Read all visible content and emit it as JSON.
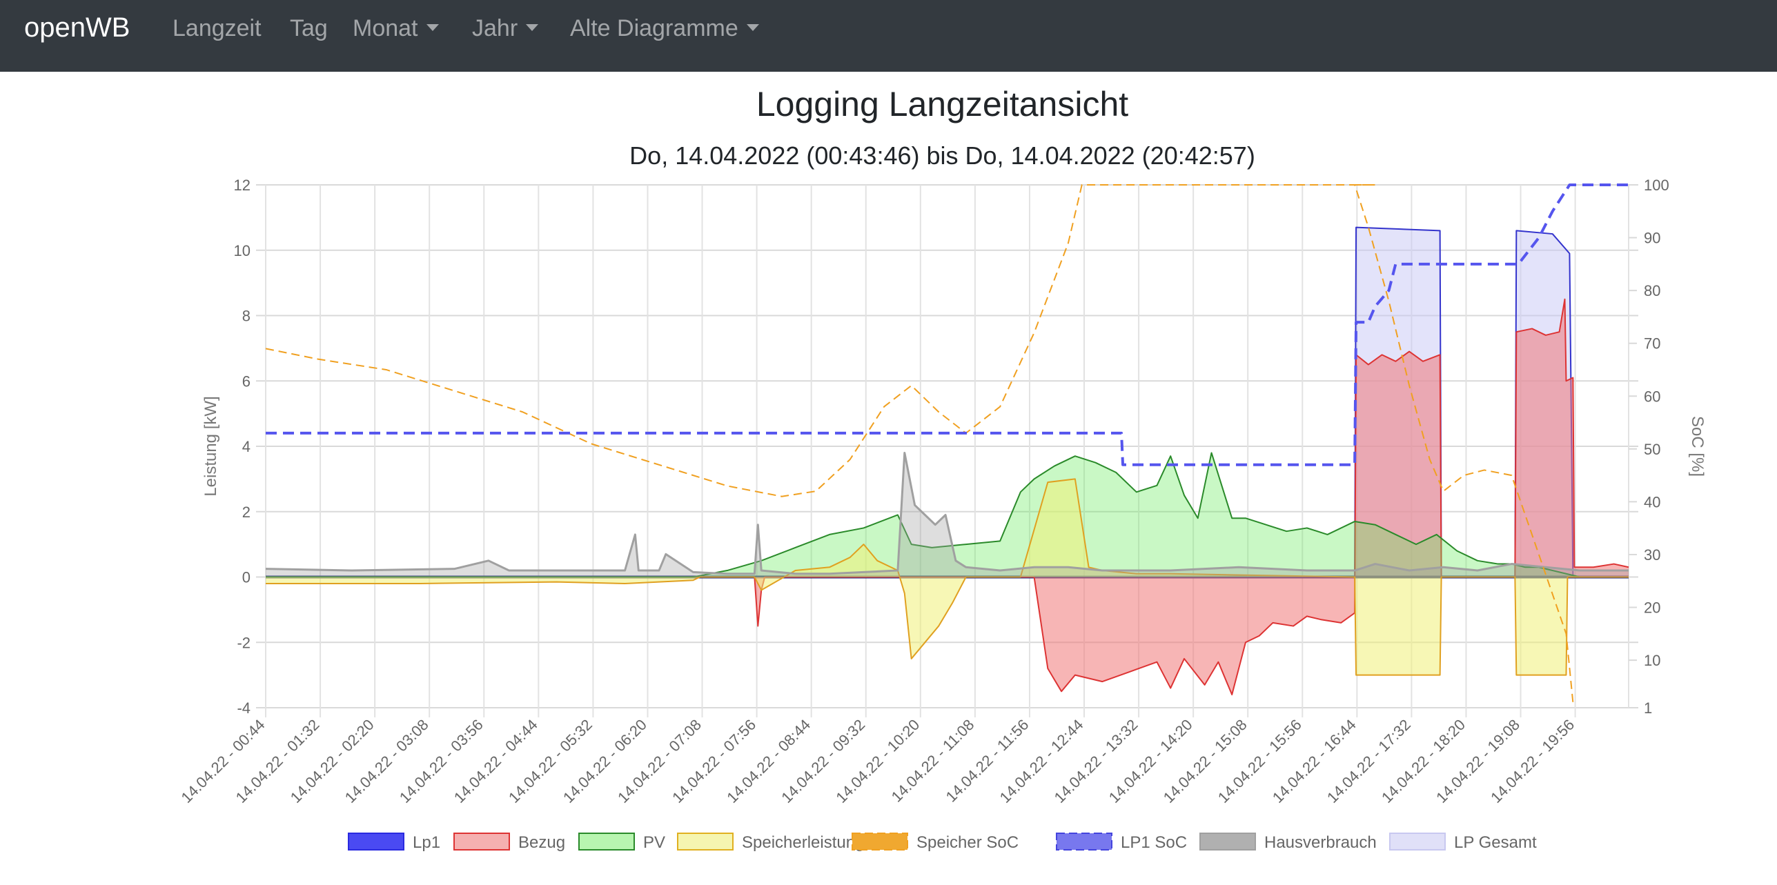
{
  "navbar": {
    "brand": "openWB",
    "items": [
      {
        "label": "Langzeit",
        "dropdown": false
      },
      {
        "label": "Tag",
        "dropdown": false
      },
      {
        "label": "Monat",
        "dropdown": true
      },
      {
        "label": "Jahr",
        "dropdown": true
      },
      {
        "label": "Alte Diagramme",
        "dropdown": true
      }
    ]
  },
  "page": {
    "title": "Logging Langzeitansicht",
    "subtitle": "Do, 14.04.2022 (00:43:46) bis Do, 14.04.2022 (20:42:57)"
  },
  "chart_data": {
    "type": "line",
    "title": "Logging Langzeitansicht",
    "subtitle": "Do, 14.04.2022 (00:43:46) bis Do, 14.04.2022 (20:42:57)",
    "x_unit": "hours since 00:00",
    "xlim": [
      0.733,
      20.716
    ],
    "x_ticks": [
      0.733,
      1.533,
      2.333,
      3.133,
      3.933,
      4.733,
      5.533,
      6.333,
      7.133,
      7.933,
      8.733,
      9.533,
      10.333,
      11.133,
      11.933,
      12.733,
      13.533,
      14.333,
      15.133,
      15.933,
      16.733,
      17.533,
      18.333,
      19.133,
      19.933
    ],
    "x_tick_labels": [
      "14.04.22 - 00:44",
      "14.04.22 - 01:32",
      "14.04.22 - 02:20",
      "14.04.22 - 03:08",
      "14.04.22 - 03:56",
      "14.04.22 - 04:44",
      "14.04.22 - 05:32",
      "14.04.22 - 06:20",
      "14.04.22 - 07:08",
      "14.04.22 - 07:56",
      "14.04.22 - 08:44",
      "14.04.22 - 09:32",
      "14.04.22 - 10:20",
      "14.04.22 - 11:08",
      "14.04.22 - 11:56",
      "14.04.22 - 12:44",
      "14.04.22 - 13:32",
      "14.04.22 - 14:20",
      "14.04.22 - 15:08",
      "14.04.22 - 15:56",
      "14.04.22 - 16:44",
      "14.04.22 - 17:32",
      "14.04.22 - 18:20",
      "14.04.22 - 19:08",
      "14.04.22 - 19:56"
    ],
    "ylabel": "Leistung [kW]",
    "ylim": [
      -4,
      12
    ],
    "y_ticks": [
      -4,
      -2,
      0,
      2,
      4,
      6,
      8,
      10,
      12
    ],
    "y_tick_labels": [
      "-4",
      "-2",
      "0",
      "2",
      "4",
      "6",
      "8",
      "10",
      "12"
    ],
    "y2label": "SoC [%]",
    "y2lim": [
      1,
      100
    ],
    "y2_ticks": [
      1,
      10,
      20,
      30,
      40,
      50,
      60,
      70,
      80,
      90,
      100
    ],
    "y2_tick_labels": [
      "1",
      "10",
      "20",
      "30",
      "40",
      "50",
      "60",
      "70",
      "80",
      "90",
      "100"
    ],
    "legend": [
      {
        "label": "Lp1",
        "fill": "#4a4af2",
        "stroke": "#2a2ae0",
        "dashed": false
      },
      {
        "label": "Bezug",
        "fill": "#f5b0b0",
        "stroke": "#dd3333",
        "dashed": false
      },
      {
        "label": "PV",
        "fill": "#b8f5b0",
        "stroke": "#2a8a2a",
        "dashed": false
      },
      {
        "label": "Speicherleistung",
        "fill": "#f5f5b0",
        "stroke": "#e0b020",
        "dashed": false
      },
      {
        "label": "Speicher SoC",
        "fill": "#f0a830",
        "stroke": "#f0a020",
        "dashed": true
      },
      {
        "label": "LP1 SoC",
        "fill": "#7878ee",
        "stroke": "#4444dd",
        "dashed": true
      },
      {
        "label": "Hausverbrauch",
        "fill": "#b0b0b0",
        "stroke": "#a0a0a0",
        "dashed": false
      },
      {
        "label": "LP Gesamt",
        "fill": "#e0e0f8",
        "stroke": "#c8c8f0",
        "dashed": false
      }
    ],
    "series": [
      {
        "name": "LP Gesamt",
        "axis": "y",
        "fill": "rgba(200,200,245,0.5)",
        "stroke": "#3333cc",
        "width": 2,
        "x": [
          0.733,
          16.7,
          16.72,
          17.95,
          17.97,
          19.05,
          19.07,
          19.6,
          19.85,
          19.9,
          19.92,
          20.716
        ],
        "y": [
          0,
          0,
          10.7,
          10.6,
          0,
          0,
          10.6,
          10.5,
          9.9,
          0,
          0,
          0
        ]
      },
      {
        "name": "Lp1",
        "axis": "y",
        "fill": "none",
        "stroke": "#1a237e",
        "width": 4,
        "x": [
          0.733,
          20.716
        ],
        "y": [
          0,
          0
        ]
      },
      {
        "name": "Bezug",
        "axis": "y",
        "fill": "rgba(240,120,120,0.55)",
        "stroke": "#dd3333",
        "width": 2,
        "x": [
          0.733,
          7.9,
          7.95,
          8.0,
          8.05,
          12.0,
          12.2,
          12.4,
          12.6,
          13.0,
          13.4,
          13.8,
          14.0,
          14.2,
          14.5,
          14.7,
          14.9,
          15.1,
          15.3,
          15.5,
          15.8,
          16.0,
          16.2,
          16.5,
          16.7,
          16.72,
          16.9,
          17.1,
          17.3,
          17.5,
          17.7,
          17.95,
          17.97,
          19.05,
          19.07,
          19.3,
          19.5,
          19.7,
          19.78,
          19.8,
          19.9,
          19.92,
          20.2,
          20.5,
          20.716
        ],
        "y": [
          0,
          0,
          -1.5,
          -0.4,
          0,
          0,
          -2.8,
          -3.5,
          -3.0,
          -3.2,
          -2.9,
          -2.6,
          -3.4,
          -2.5,
          -3.3,
          -2.6,
          -3.6,
          -2.0,
          -1.8,
          -1.4,
          -1.5,
          -1.2,
          -1.3,
          -1.4,
          -1.1,
          6.8,
          6.5,
          6.8,
          6.6,
          6.9,
          6.6,
          6.8,
          0,
          0,
          7.5,
          7.6,
          7.4,
          7.5,
          8.5,
          6.0,
          6.1,
          0.3,
          0.3,
          0.4,
          0.3
        ]
      },
      {
        "name": "PV",
        "axis": "y",
        "fill": "rgba(100,235,90,0.35)",
        "stroke": "#2a8a2a",
        "width": 2,
        "x": [
          0.733,
          7.0,
          7.5,
          8.0,
          8.5,
          9.0,
          9.5,
          10.0,
          10.2,
          10.5,
          11.0,
          11.5,
          11.8,
          12.0,
          12.3,
          12.6,
          12.9,
          13.2,
          13.5,
          13.8,
          14.0,
          14.2,
          14.4,
          14.6,
          14.9,
          15.1,
          15.4,
          15.7,
          16.0,
          16.3,
          16.7,
          17.0,
          17.3,
          17.6,
          17.9,
          18.2,
          18.5,
          18.8,
          19.0,
          19.2,
          19.4,
          19.6,
          19.8,
          20.0
        ],
        "y": [
          0,
          0,
          0.2,
          0.5,
          0.9,
          1.3,
          1.5,
          1.9,
          1.0,
          0.9,
          1.0,
          1.1,
          2.6,
          3.0,
          3.4,
          3.7,
          3.5,
          3.2,
          2.6,
          2.8,
          3.7,
          2.5,
          1.8,
          3.8,
          1.8,
          1.8,
          1.6,
          1.4,
          1.5,
          1.3,
          1.7,
          1.6,
          1.3,
          1.0,
          1.3,
          0.8,
          0.5,
          0.4,
          0.4,
          0.3,
          0.3,
          0.2,
          0.1,
          0
        ]
      },
      {
        "name": "Speicherleistung",
        "axis": "y",
        "fill": "rgba(240,240,120,0.55)",
        "stroke": "#e0a020",
        "width": 2,
        "x": [
          0.733,
          3.0,
          5.0,
          6.0,
          7.0,
          7.1,
          7.9,
          8.0,
          8.5,
          9.0,
          9.3,
          9.5,
          9.7,
          10.0,
          10.1,
          10.2,
          10.6,
          10.8,
          11.0,
          11.8,
          12.2,
          12.6,
          12.8,
          13.0,
          13.5,
          14.0,
          16.7,
          16.72,
          17.95,
          17.97,
          19.05,
          19.07,
          19.8,
          19.82,
          20.716
        ],
        "y": [
          -0.2,
          -0.2,
          -0.15,
          -0.2,
          -0.1,
          0,
          0,
          -0.4,
          0.2,
          0.3,
          0.6,
          1.0,
          0.5,
          0.2,
          -0.5,
          -2.5,
          -1.5,
          -0.8,
          0,
          0,
          2.9,
          3.0,
          0.3,
          0.2,
          0.1,
          0.1,
          0,
          -3.0,
          -3.0,
          0,
          0,
          -3.0,
          -3.0,
          0,
          0
        ]
      },
      {
        "name": "Hausverbrauch",
        "axis": "y",
        "fill": "rgba(160,160,160,0.35)",
        "stroke": "#a0a0a0",
        "width": 3,
        "x": [
          0.733,
          2.0,
          3.5,
          4.0,
          4.3,
          4.5,
          6.0,
          6.15,
          6.2,
          6.5,
          6.6,
          7.0,
          7.5,
          7.9,
          7.95,
          8.0,
          8.5,
          9.0,
          9.5,
          10.0,
          10.1,
          10.25,
          10.4,
          10.55,
          10.7,
          10.85,
          11.0,
          11.5,
          12.0,
          12.5,
          13.0,
          13.5,
          14.0,
          15.0,
          16.0,
          16.7,
          17.0,
          17.5,
          18.0,
          18.5,
          19.0,
          19.5,
          20.0,
          20.716
        ],
        "y": [
          0.25,
          0.2,
          0.25,
          0.5,
          0.2,
          0.2,
          0.2,
          1.3,
          0.2,
          0.2,
          0.7,
          0.15,
          0.1,
          0.1,
          1.6,
          0.2,
          0.1,
          0.1,
          0.15,
          0.2,
          3.8,
          2.2,
          1.9,
          1.6,
          1.9,
          0.5,
          0.3,
          0.2,
          0.3,
          0.3,
          0.2,
          0.2,
          0.2,
          0.3,
          0.2,
          0.2,
          0.4,
          0.2,
          0.3,
          0.2,
          0.4,
          0.3,
          0.2,
          0.2
        ]
      },
      {
        "name": "Speicher SoC",
        "axis": "y2",
        "fill": "none",
        "stroke": "#f0a020",
        "width": 2,
        "dashed": true,
        "x": [
          0.733,
          1.5,
          2.5,
          3.5,
          4.5,
          5.5,
          6.5,
          7.5,
          8.3,
          8.8,
          9.3,
          9.8,
          10.2,
          10.6,
          11.0,
          11.5,
          12.0,
          12.5,
          12.7,
          13.0,
          15.0,
          17.0,
          16.7,
          16.9,
          17.2,
          17.5,
          17.8,
          18.0,
          18.3,
          18.6,
          19.0,
          19.4,
          19.8,
          19.9
        ],
        "y": [
          69,
          67,
          65,
          61,
          57,
          51,
          47,
          43,
          41,
          42,
          48,
          58,
          62,
          57,
          53,
          58,
          72,
          89,
          100,
          100,
          100,
          100,
          100,
          92,
          78,
          62,
          48,
          42,
          45,
          46,
          45,
          30,
          15,
          2
        ]
      },
      {
        "name": "LP1 SoC",
        "axis": "y2",
        "fill": "none",
        "stroke": "#5555ee",
        "width": 4,
        "dashed": true,
        "x": [
          0.733,
          13.28,
          13.3,
          16.7,
          16.72,
          16.9,
          17.0,
          17.2,
          17.3,
          18.0,
          18.5,
          19.1,
          19.4,
          19.6,
          19.85,
          20.716
        ],
        "y": [
          53,
          53,
          47,
          47,
          74,
          74,
          77,
          80,
          85,
          85,
          85,
          85,
          90,
          95,
          100,
          100
        ]
      }
    ]
  }
}
